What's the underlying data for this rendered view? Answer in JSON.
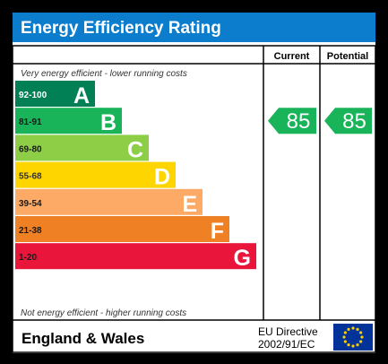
{
  "chart_data": {
    "type": "bar",
    "title": "Energy Efficiency Rating",
    "columns": {
      "current": "Current",
      "potential": "Potential"
    },
    "top_note": "Very energy efficient - lower running costs",
    "bottom_note": "Not energy efficient - higher running costs",
    "bands": [
      {
        "range": "92-100",
        "letter": "A",
        "color": "#008054"
      },
      {
        "range": "81-91",
        "letter": "B",
        "color": "#19b459"
      },
      {
        "range": "69-80",
        "letter": "C",
        "color": "#8dce46"
      },
      {
        "range": "55-68",
        "letter": "D",
        "color": "#ffd500"
      },
      {
        "range": "39-54",
        "letter": "E",
        "color": "#fcaa65"
      },
      {
        "range": "21-38",
        "letter": "F",
        "color": "#ef8023"
      },
      {
        "range": "1-20",
        "letter": "G",
        "color": "#e9153b"
      }
    ],
    "current_rating": 85,
    "potential_rating": 85,
    "rating_color": "#19b459",
    "title_bar_color": "#0c7ccc",
    "footer": {
      "region": "England & Wales",
      "directive_line1": "EU Directive",
      "directive_line2": "2002/91/EC"
    },
    "eu_flag_colors": {
      "field": "#003399",
      "stars": "#ffcc00"
    }
  }
}
